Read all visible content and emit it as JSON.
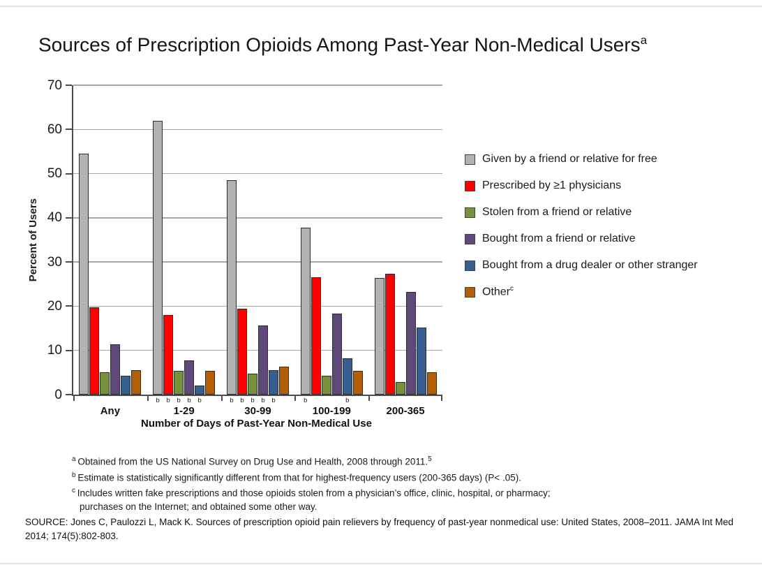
{
  "slide": {
    "title": "Sources of Prescription Opioids Among Past-Year Non-Medical Users",
    "title_superscript": "a"
  },
  "chart_data": {
    "type": "bar",
    "title": "Sources of Prescription Opioids Among Past-Year Non-Medical Users",
    "xlabel": "Number of Days of Past-Year Non-Medical Use",
    "ylabel": "Percent of Users",
    "ylim": [
      0,
      70
    ],
    "ytick_step": 10,
    "grid": true,
    "legend_position": "right",
    "categories": [
      "Any",
      "1-29",
      "30-99",
      "100-199",
      "200-365"
    ],
    "series": [
      {
        "name": "Given by a friend or relative for free",
        "color": "#b2b2b2",
        "values": [
          54.5,
          62.0,
          48.5,
          37.7,
          26.4
        ]
      },
      {
        "name": "Prescribed by ≥1 physicians",
        "color": "#fe0000",
        "values": [
          19.8,
          18.0,
          19.5,
          26.5,
          27.3
        ]
      },
      {
        "name": "Stolen from a friend or relative",
        "color": "#76923c",
        "values": [
          5.0,
          5.4,
          4.7,
          4.2,
          2.9
        ]
      },
      {
        "name": "Bought from a friend or relative",
        "color": "#5f497a",
        "values": [
          11.4,
          7.8,
          15.7,
          18.3,
          23.2
        ]
      },
      {
        "name": "Bought from a drug dealer or other stranger",
        "color": "#376092",
        "values": [
          4.3,
          2.1,
          5.5,
          8.2,
          15.2
        ]
      },
      {
        "name": "Other",
        "name_superscript": "c",
        "color": "#b45f06",
        "values": [
          5.6,
          5.4,
          6.4,
          5.3,
          5.0
        ]
      }
    ],
    "significance_marker": "b",
    "significance_by_category": [
      [],
      [
        0,
        1,
        2,
        3,
        4
      ],
      [
        0,
        1,
        2,
        3,
        4
      ],
      [
        0,
        4
      ],
      []
    ]
  },
  "footnotes": [
    {
      "marker": "a",
      "text": "Obtained from the US National Survey on Drug Use and Health, 2008 through 2011.",
      "trailing_superscript": "5"
    },
    {
      "marker": "b",
      "text": "Estimate is statistically significantly different from that for highest-frequency users (200-365 days) (P< .05)."
    },
    {
      "marker": "c",
      "text": "Includes written fake prescriptions and those opioids stolen from a physician’s office, clinic, hospital, or pharmacy; purchases on the Internet; and obtained some other way."
    }
  ],
  "source": "SOURCE: Jones C, Paulozzi L, Mack K. Sources of prescription opioid pain relievers by frequency of past-year nonmedical use: United States, 2008–2011. JAMA Int Med 2014; 174(5):802-803."
}
